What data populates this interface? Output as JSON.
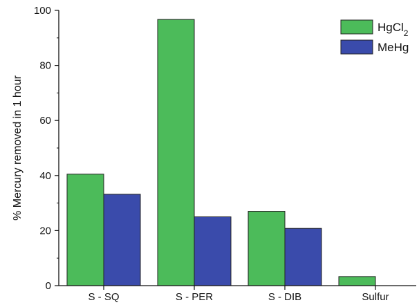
{
  "chart_data": {
    "type": "bar",
    "title": "",
    "xlabel": "",
    "ylabel": "% Mercury removed in 1 hour",
    "categories": [
      "S - SQ",
      "S - PER",
      "S - DIB",
      "Sulfur"
    ],
    "series": [
      {
        "name": "HgCl",
        "name_subscript": "2",
        "color": "#4cbb5a",
        "values": [
          40.5,
          96.7,
          27.0,
          3.3
        ]
      },
      {
        "name": "MeHg",
        "name_subscript": "",
        "color": "#3a4bab",
        "values": [
          33.2,
          25.0,
          20.8,
          0
        ]
      }
    ],
    "ylim": [
      0,
      100
    ],
    "yticks": [
      "0",
      "20",
      "40",
      "60",
      "80",
      "100"
    ],
    "legend_position": "top-right",
    "grid": false
  }
}
